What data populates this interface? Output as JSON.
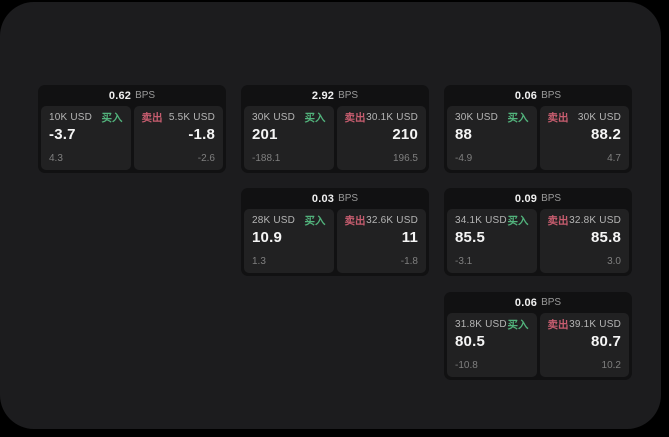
{
  "colors": {
    "outer_background": "#000000",
    "window_background": "#1c1c1e",
    "card_background": "#111112",
    "tile_background": "#212122",
    "buy_green": "#52b37c",
    "sell_red": "#c75d6f",
    "primary_text": "#f5f5f5",
    "label_gray": "#b5b5b5",
    "sub_gray": "#7f7f7f"
  },
  "cards": [
    {
      "spread": "0.62",
      "unit": "BPS",
      "buy": {
        "amount": "10K USD",
        "tag": "买入",
        "value": "-3.7",
        "sub": "4.3"
      },
      "sell": {
        "tag": "卖出",
        "amount": "5.5K USD",
        "value": "-1.8",
        "sub": "-2.6"
      }
    },
    {
      "spread": "2.92",
      "unit": "BPS",
      "buy": {
        "amount": "30K USD",
        "tag": "买入",
        "value": "201",
        "sub": "-188.1"
      },
      "sell": {
        "tag": "卖出",
        "amount": "30.1K USD",
        "value": "210",
        "sub": "196.5"
      }
    },
    {
      "spread": "0.06",
      "unit": "BPS",
      "buy": {
        "amount": "30K USD",
        "tag": "买入",
        "value": "88",
        "sub": "-4.9"
      },
      "sell": {
        "tag": "卖出",
        "amount": "30K USD",
        "value": "88.2",
        "sub": "4.7"
      }
    },
    {
      "spread": "0.03",
      "unit": "BPS",
      "buy": {
        "amount": "28K USD",
        "tag": "买入",
        "value": "10.9",
        "sub": "1.3"
      },
      "sell": {
        "tag": "卖出",
        "amount": "32.6K USD",
        "value": "11",
        "sub": "-1.8"
      }
    },
    {
      "spread": "0.09",
      "unit": "BPS",
      "buy": {
        "amount": "34.1K USD",
        "tag": "买入",
        "value": "85.5",
        "sub": "-3.1"
      },
      "sell": {
        "tag": "卖出",
        "amount": "32.8K USD",
        "value": "85.8",
        "sub": "3.0"
      }
    },
    {
      "spread": "0.06",
      "unit": "BPS",
      "buy": {
        "amount": "31.8K USD",
        "tag": "买入",
        "value": "80.5",
        "sub": "-10.8"
      },
      "sell": {
        "tag": "卖出",
        "amount": "39.1K USD",
        "value": "80.7",
        "sub": "10.2"
      }
    }
  ]
}
